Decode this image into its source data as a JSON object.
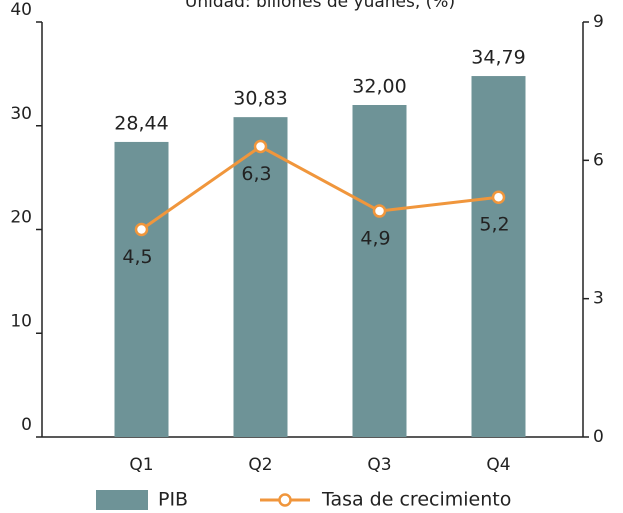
{
  "chart_data": {
    "type": "bar_line",
    "subtitle": "Unidad: billones de yuanes, (%)",
    "categories": [
      "Q1",
      "Q2",
      "Q3",
      "Q4"
    ],
    "series": [
      {
        "name": "PIB",
        "type": "bar",
        "color": "#6e9397",
        "values": [
          28.44,
          30.83,
          32.0,
          34.79
        ],
        "value_labels": [
          "28,44",
          "30,83",
          "32,00",
          "34,79"
        ]
      },
      {
        "name": "Tasa de crecimiento",
        "type": "line",
        "axis": "y2",
        "color": "#f0963c",
        "values": [
          4.5,
          6.3,
          4.9,
          5.2
        ],
        "value_labels": [
          "4,5",
          "6,3",
          "4,9",
          "5,2"
        ]
      }
    ],
    "ylim": [
      0,
      40
    ],
    "yticks": [
      0,
      10,
      20,
      30,
      40
    ],
    "y2lim": [
      0,
      9
    ],
    "y2ticks": [
      0,
      3,
      6,
      9
    ],
    "grid": false,
    "legend": "bottom"
  }
}
